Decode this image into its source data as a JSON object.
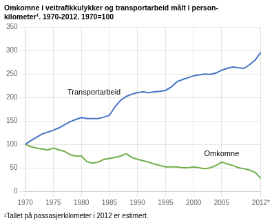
{
  "chart_data": {
    "type": "line",
    "title": "Omkomne i veitrafikkulykker og transportarbeid målt i person-\nkilometer¹. 1970-2012. 1970=100",
    "footnote": "¹Tallet på passasjerkilometer i 2012 er estimert.",
    "x": [
      1970,
      1971,
      1972,
      1973,
      1974,
      1975,
      1976,
      1977,
      1978,
      1979,
      1980,
      1981,
      1982,
      1983,
      1984,
      1985,
      1986,
      1987,
      1988,
      1989,
      1990,
      1991,
      1992,
      1993,
      1994,
      1995,
      1996,
      1997,
      1998,
      1999,
      2000,
      2001,
      2002,
      2003,
      2004,
      2005,
      2006,
      2007,
      2008,
      2009,
      2010,
      2011,
      2012
    ],
    "series": [
      {
        "name": "Transportarbeid",
        "color": "#4472C4",
        "values": [
          100,
          108,
          115,
          122,
          126,
          130,
          135,
          142,
          148,
          153,
          157,
          155,
          155,
          155,
          158,
          162,
          180,
          194,
          202,
          207,
          210,
          212,
          210,
          212,
          213,
          215,
          222,
          233,
          238,
          242,
          246,
          248,
          250,
          249,
          252,
          258,
          262,
          265,
          263,
          262,
          270,
          280,
          297
        ]
      },
      {
        "name": "Omkomne",
        "color": "#70AD47",
        "values": [
          100,
          95,
          92,
          90,
          88,
          92,
          88,
          85,
          78,
          75,
          75,
          63,
          60,
          62,
          68,
          70,
          72,
          75,
          80,
          72,
          68,
          65,
          62,
          58,
          55,
          52,
          52,
          52,
          50,
          50,
          52,
          50,
          48,
          50,
          55,
          62,
          58,
          55,
          50,
          48,
          45,
          40,
          27
        ]
      }
    ],
    "xlim": [
      1970,
      2012
    ],
    "ylim": [
      0,
      350
    ],
    "xticks": [
      1970,
      1975,
      1980,
      1985,
      1990,
      1995,
      2000,
      2005,
      {
        "value": 2012,
        "label": "2012*"
      }
    ],
    "yticks": [
      0,
      50,
      100,
      150,
      200,
      250,
      300,
      350
    ],
    "grid": true
  }
}
